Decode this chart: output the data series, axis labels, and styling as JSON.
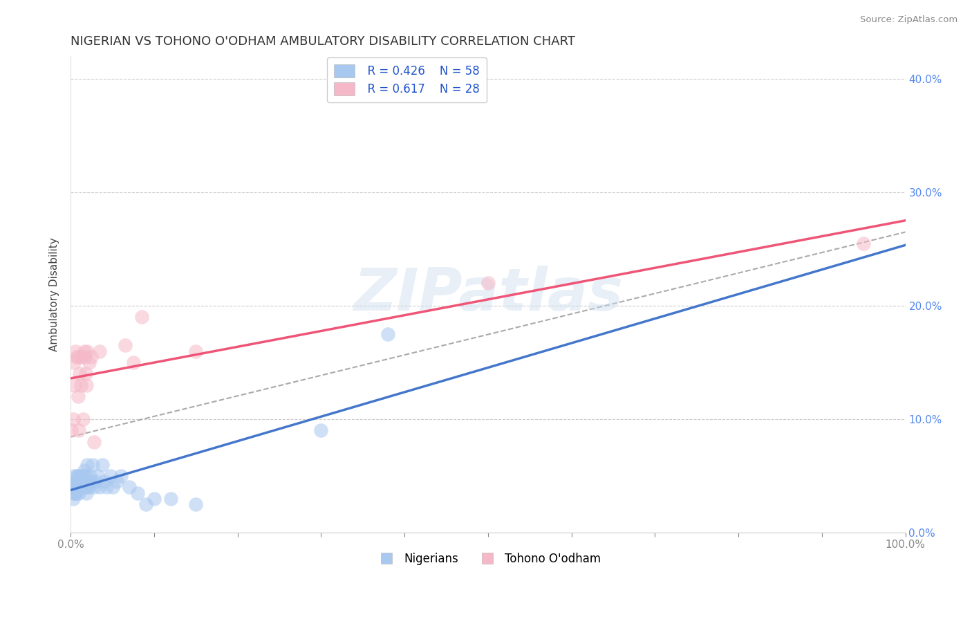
{
  "title": "NIGERIAN VS TOHONO O'ODHAM AMBULATORY DISABILITY CORRELATION CHART",
  "source": "Source: ZipAtlas.com",
  "ylabel": "Ambulatory Disability",
  "xlabel": "",
  "watermark": "ZIPatlas",
  "legend_r1": "R = 0.426",
  "legend_n1": "N = 58",
  "legend_r2": "R = 0.617",
  "legend_n2": "N = 28",
  "legend_label1": "Nigerians",
  "legend_label2": "Tohono O'odham",
  "color_blue": "#A8C8F0",
  "color_pink": "#F5B8C8",
  "color_blue_line": "#4477CC",
  "color_pink_line": "#EE5577",
  "color_grey_line": "#AAAAAA",
  "xlim": [
    0.0,
    1.0
  ],
  "ylim": [
    0.0,
    0.42
  ],
  "xticks": [
    0.0,
    0.1,
    0.2,
    0.3,
    0.4,
    0.5,
    0.6,
    0.7,
    0.8,
    0.9,
    1.0
  ],
  "yticks": [
    0.0,
    0.1,
    0.2,
    0.3,
    0.4
  ],
  "xtick_labels": [
    "0.0%",
    "",
    "",
    "",
    "",
    "",
    "",
    "",
    "",
    "",
    "100.0%"
  ],
  "ytick_labels_right": [
    "0.0%",
    "10.0%",
    "20.0%",
    "30.0%",
    "40.0%"
  ],
  "nigerian_x": [
    0.002,
    0.003,
    0.004,
    0.004,
    0.005,
    0.005,
    0.005,
    0.006,
    0.006,
    0.006,
    0.007,
    0.007,
    0.007,
    0.008,
    0.008,
    0.009,
    0.009,
    0.01,
    0.01,
    0.01,
    0.011,
    0.012,
    0.012,
    0.013,
    0.013,
    0.014,
    0.015,
    0.015,
    0.016,
    0.017,
    0.018,
    0.018,
    0.019,
    0.02,
    0.02,
    0.022,
    0.023,
    0.025,
    0.026,
    0.028,
    0.03,
    0.032,
    0.035,
    0.038,
    0.04,
    0.043,
    0.048,
    0.05,
    0.055,
    0.06,
    0.07,
    0.08,
    0.09,
    0.1,
    0.12,
    0.15,
    0.3,
    0.38
  ],
  "nigerian_y": [
    0.04,
    0.03,
    0.05,
    0.035,
    0.04,
    0.045,
    0.035,
    0.04,
    0.045,
    0.035,
    0.04,
    0.05,
    0.035,
    0.04,
    0.045,
    0.04,
    0.05,
    0.04,
    0.045,
    0.035,
    0.05,
    0.04,
    0.045,
    0.04,
    0.05,
    0.045,
    0.04,
    0.05,
    0.055,
    0.04,
    0.045,
    0.05,
    0.035,
    0.04,
    0.06,
    0.04,
    0.05,
    0.045,
    0.06,
    0.04,
    0.045,
    0.05,
    0.04,
    0.06,
    0.045,
    0.04,
    0.05,
    0.04,
    0.045,
    0.05,
    0.04,
    0.035,
    0.025,
    0.03,
    0.03,
    0.025,
    0.09,
    0.175
  ],
  "tohono_x": [
    0.001,
    0.003,
    0.004,
    0.005,
    0.006,
    0.007,
    0.008,
    0.009,
    0.01,
    0.011,
    0.012,
    0.013,
    0.015,
    0.016,
    0.017,
    0.018,
    0.019,
    0.02,
    0.022,
    0.025,
    0.028,
    0.035,
    0.065,
    0.075,
    0.085,
    0.15,
    0.5,
    0.95
  ],
  "tohono_y": [
    0.09,
    0.1,
    0.15,
    0.13,
    0.16,
    0.155,
    0.155,
    0.12,
    0.09,
    0.14,
    0.13,
    0.155,
    0.1,
    0.16,
    0.155,
    0.14,
    0.13,
    0.16,
    0.15,
    0.155,
    0.08,
    0.16,
    0.165,
    0.15,
    0.19,
    0.16,
    0.22,
    0.255
  ],
  "bg_color": "#FFFFFF",
  "grid_color": "#CCCCCC"
}
